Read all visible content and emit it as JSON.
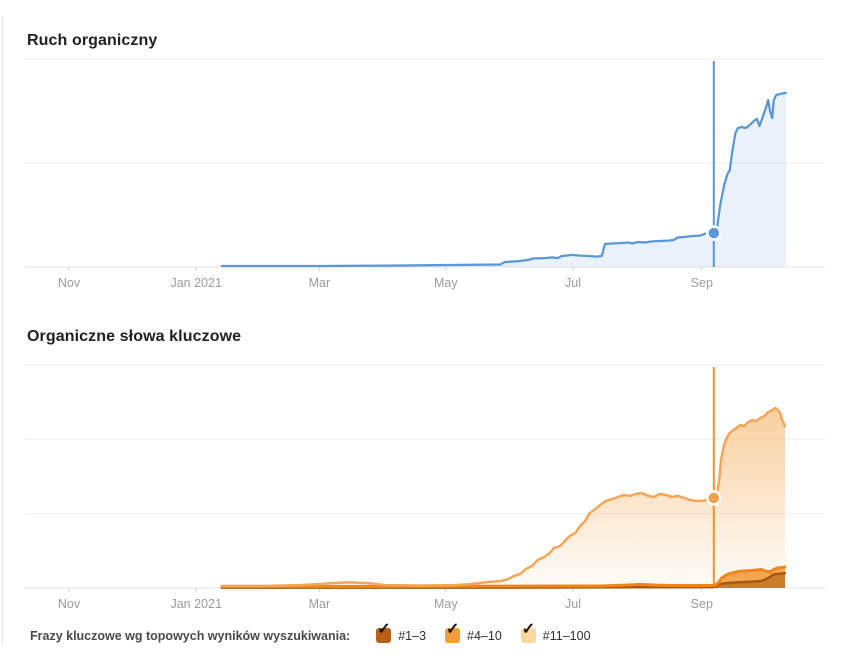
{
  "section_traffic": {
    "title": "Ruch organiczny"
  },
  "section_keywords": {
    "title": "Organiczne słowa kluczowe"
  },
  "legend": {
    "label": "Frazy kluczowe wg topowych wyników wyszukiwania:",
    "items": [
      {
        "label": "#1–3",
        "checkbox_color": "#b55f17",
        "checked": true
      },
      {
        "label": "#4–10",
        "checkbox_color": "#f59c3c",
        "checked": true
      },
      {
        "label": "#11–100",
        "checkbox_color": "#fbd7a0",
        "checked": true
      }
    ]
  },
  "chart_data": [
    {
      "type": "area",
      "title": "Ruch organiczny",
      "x_axis": {
        "tick_labels": [
          "Nov",
          "Jan 2021",
          "Mar",
          "May",
          "Jul",
          "Sep"
        ],
        "tick_positions": [
          0.055,
          0.214,
          0.368,
          0.526,
          0.685,
          0.846
        ],
        "range": "Oct 2020 – Nov 2021"
      },
      "y_axis": {
        "tick_labels_visible": false,
        "unit": "relative fraction of plot height (no y labels shown)",
        "gridlines": [
          0,
          0.5,
          1
        ]
      },
      "legend_position": "none",
      "series": [
        {
          "name": "organic-traffic",
          "color": "#5b96d8",
          "stroke_width": 2.25,
          "fill_top": "rgba(91,150,216,0.13)",
          "fill_bottom": "rgba(91,150,216,0.13)",
          "points": [
            [
              0.246,
              0.005
            ],
            [
              0.369,
              0.005
            ],
            [
              0.469,
              0.007
            ],
            [
              0.544,
              0.01
            ],
            [
              0.594,
              0.012
            ],
            [
              0.6,
              0.024
            ],
            [
              0.609,
              0.026
            ],
            [
              0.619,
              0.029
            ],
            [
              0.629,
              0.034
            ],
            [
              0.635,
              0.041
            ],
            [
              0.65,
              0.043
            ],
            [
              0.659,
              0.046
            ],
            [
              0.666,
              0.043
            ],
            [
              0.671,
              0.053
            ],
            [
              0.676,
              0.055
            ],
            [
              0.684,
              0.058
            ],
            [
              0.694,
              0.055
            ],
            [
              0.704,
              0.053
            ],
            [
              0.714,
              0.05
            ],
            [
              0.721,
              0.053
            ],
            [
              0.725,
              0.111
            ],
            [
              0.734,
              0.113
            ],
            [
              0.744,
              0.115
            ],
            [
              0.754,
              0.118
            ],
            [
              0.759,
              0.113
            ],
            [
              0.766,
              0.12
            ],
            [
              0.775,
              0.118
            ],
            [
              0.784,
              0.123
            ],
            [
              0.794,
              0.125
            ],
            [
              0.804,
              0.127
            ],
            [
              0.811,
              0.13
            ],
            [
              0.816,
              0.142
            ],
            [
              0.824,
              0.144
            ],
            [
              0.834,
              0.149
            ],
            [
              0.844,
              0.151
            ],
            [
              0.851,
              0.161
            ],
            [
              0.861,
              0.163
            ],
            [
              0.865,
              0.188
            ],
            [
              0.869,
              0.298
            ],
            [
              0.874,
              0.394
            ],
            [
              0.878,
              0.447
            ],
            [
              0.881,
              0.466
            ],
            [
              0.884,
              0.553
            ],
            [
              0.888,
              0.644
            ],
            [
              0.891,
              0.668
            ],
            [
              0.896,
              0.673
            ],
            [
              0.901,
              0.668
            ],
            [
              0.906,
              0.683
            ],
            [
              0.911,
              0.702
            ],
            [
              0.915,
              0.712
            ],
            [
              0.918,
              0.678
            ],
            [
              0.92,
              0.697
            ],
            [
              0.923,
              0.731
            ],
            [
              0.926,
              0.764
            ],
            [
              0.929,
              0.803
            ],
            [
              0.931,
              0.755
            ],
            [
              0.934,
              0.716
            ],
            [
              0.936,
              0.803
            ],
            [
              0.939,
              0.827
            ],
            [
              0.944,
              0.832
            ],
            [
              0.951,
              0.837
            ]
          ]
        }
      ],
      "crosshair": {
        "x": 0.861,
        "color": "#5b96d8"
      },
      "marker": {
        "x": 0.861,
        "v": 0.163,
        "color": "#5b96d8"
      }
    },
    {
      "type": "area",
      "title": "Organiczne słowa kluczowe",
      "x_axis": {
        "tick_labels": [
          "Nov",
          "Jan 2021",
          "Mar",
          "May",
          "Jul",
          "Sep"
        ],
        "tick_positions": [
          0.055,
          0.214,
          0.368,
          0.526,
          0.685,
          0.846
        ],
        "range": "Oct 2020 – Nov 2021"
      },
      "y_axis": {
        "tick_labels_visible": false,
        "unit": "relative fraction of plot height (no y labels shown)",
        "gridlines": [
          0,
          0.333,
          0.667,
          1
        ]
      },
      "legend_position": "bottom",
      "series": [
        {
          "name": "keywords-11-100",
          "label": "#11–100",
          "color": "#f2a757",
          "stroke_width": 2.5,
          "fill_top": "rgba(243,159,61,0.50)",
          "fill_bottom": "rgba(243,159,61,0.03)",
          "points": [
            [
              0.246,
              0.009
            ],
            [
              0.294,
              0.009
            ],
            [
              0.344,
              0.013
            ],
            [
              0.369,
              0.018
            ],
            [
              0.384,
              0.022
            ],
            [
              0.406,
              0.025
            ],
            [
              0.429,
              0.022
            ],
            [
              0.45,
              0.013
            ],
            [
              0.494,
              0.011
            ],
            [
              0.538,
              0.013
            ],
            [
              0.559,
              0.018
            ],
            [
              0.579,
              0.027
            ],
            [
              0.594,
              0.031
            ],
            [
              0.604,
              0.04
            ],
            [
              0.611,
              0.054
            ],
            [
              0.619,
              0.063
            ],
            [
              0.626,
              0.085
            ],
            [
              0.634,
              0.099
            ],
            [
              0.641,
              0.126
            ],
            [
              0.649,
              0.139
            ],
            [
              0.656,
              0.157
            ],
            [
              0.661,
              0.179
            ],
            [
              0.669,
              0.188
            ],
            [
              0.675,
              0.211
            ],
            [
              0.681,
              0.233
            ],
            [
              0.688,
              0.247
            ],
            [
              0.694,
              0.278
            ],
            [
              0.7,
              0.3
            ],
            [
              0.706,
              0.336
            ],
            [
              0.713,
              0.354
            ],
            [
              0.719,
              0.372
            ],
            [
              0.726,
              0.39
            ],
            [
              0.734,
              0.399
            ],
            [
              0.741,
              0.408
            ],
            [
              0.749,
              0.417
            ],
            [
              0.756,
              0.413
            ],
            [
              0.764,
              0.422
            ],
            [
              0.771,
              0.426
            ],
            [
              0.779,
              0.413
            ],
            [
              0.786,
              0.408
            ],
            [
              0.794,
              0.422
            ],
            [
              0.801,
              0.417
            ],
            [
              0.809,
              0.408
            ],
            [
              0.816,
              0.413
            ],
            [
              0.824,
              0.404
            ],
            [
              0.831,
              0.395
            ],
            [
              0.839,
              0.39
            ],
            [
              0.846,
              0.39
            ],
            [
              0.854,
              0.395
            ],
            [
              0.861,
              0.404
            ],
            [
              0.865,
              0.417
            ],
            [
              0.868,
              0.493
            ],
            [
              0.87,
              0.574
            ],
            [
              0.873,
              0.628
            ],
            [
              0.876,
              0.664
            ],
            [
              0.88,
              0.691
            ],
            [
              0.884,
              0.704
            ],
            [
              0.889,
              0.717
            ],
            [
              0.894,
              0.731
            ],
            [
              0.899,
              0.726
            ],
            [
              0.904,
              0.744
            ],
            [
              0.909,
              0.753
            ],
            [
              0.914,
              0.749
            ],
            [
              0.919,
              0.762
            ],
            [
              0.924,
              0.771
            ],
            [
              0.929,
              0.789
            ],
            [
              0.934,
              0.798
            ],
            [
              0.938,
              0.807
            ],
            [
              0.941,
              0.798
            ],
            [
              0.944,
              0.785
            ],
            [
              0.946,
              0.758
            ],
            [
              0.95,
              0.726
            ]
          ]
        },
        {
          "name": "keywords-4-10",
          "label": "#4–10",
          "color": "#ee861a",
          "stroke_width": 3,
          "fill_top": "#f3a552",
          "fill_bottom": "#f3a552",
          "points": [
            [
              0.246,
              0.007
            ],
            [
              0.469,
              0.007
            ],
            [
              0.669,
              0.009
            ],
            [
              0.719,
              0.009
            ],
            [
              0.75,
              0.013
            ],
            [
              0.769,
              0.016
            ],
            [
              0.788,
              0.013
            ],
            [
              0.806,
              0.011
            ],
            [
              0.861,
              0.011
            ],
            [
              0.865,
              0.018
            ],
            [
              0.868,
              0.031
            ],
            [
              0.871,
              0.045
            ],
            [
              0.876,
              0.058
            ],
            [
              0.881,
              0.065
            ],
            [
              0.889,
              0.072
            ],
            [
              0.896,
              0.076
            ],
            [
              0.906,
              0.078
            ],
            [
              0.916,
              0.081
            ],
            [
              0.921,
              0.083
            ],
            [
              0.926,
              0.076
            ],
            [
              0.931,
              0.072
            ],
            [
              0.936,
              0.083
            ],
            [
              0.941,
              0.09
            ],
            [
              0.946,
              0.092
            ],
            [
              0.95,
              0.094
            ]
          ]
        },
        {
          "name": "keywords-1-3",
          "label": "#1–3",
          "color": "#a8570e",
          "stroke_width": 2.5,
          "fill_top": "#cd7c28",
          "fill_bottom": "#cd7c28",
          "points": [
            [
              0.246,
              0.002
            ],
            [
              0.594,
              0.002
            ],
            [
              0.861,
              0.004
            ],
            [
              0.865,
              0.009
            ],
            [
              0.868,
              0.016
            ],
            [
              0.873,
              0.02
            ],
            [
              0.879,
              0.022
            ],
            [
              0.889,
              0.025
            ],
            [
              0.901,
              0.027
            ],
            [
              0.911,
              0.029
            ],
            [
              0.919,
              0.031
            ],
            [
              0.924,
              0.036
            ],
            [
              0.929,
              0.045
            ],
            [
              0.933,
              0.054
            ],
            [
              0.936,
              0.061
            ],
            [
              0.941,
              0.063
            ],
            [
              0.946,
              0.065
            ],
            [
              0.95,
              0.067
            ]
          ]
        }
      ],
      "crosshair": {
        "x": 0.861,
        "color": "#f0932a"
      },
      "marker": {
        "x": 0.861,
        "v": 0.404,
        "color": "#efa24b"
      }
    }
  ]
}
